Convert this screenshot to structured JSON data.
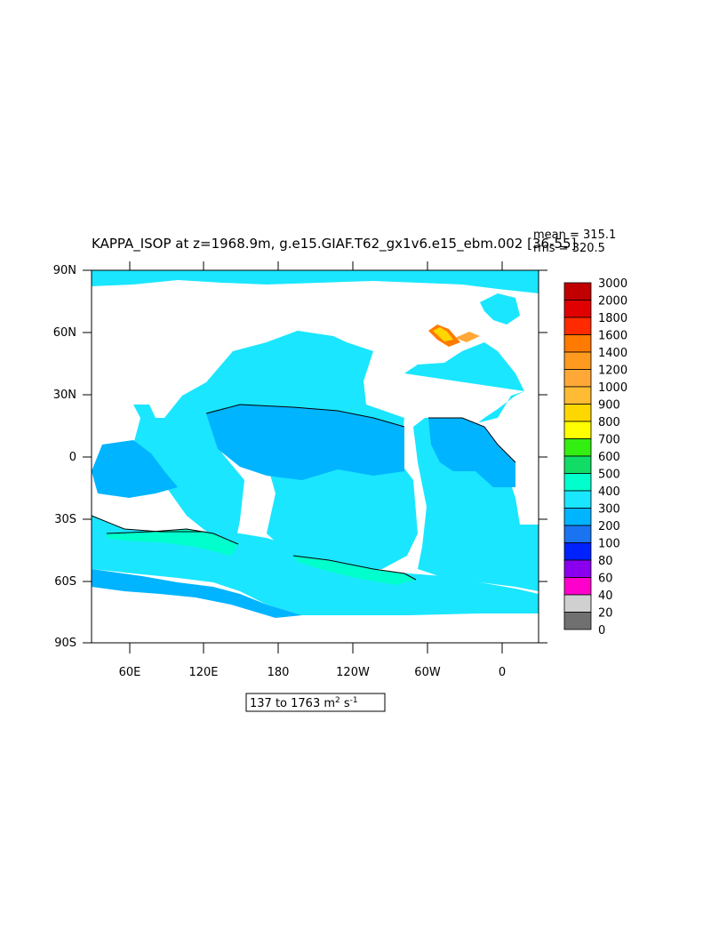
{
  "plot": {
    "title": "KAPPA_ISOP at z=1968.9m, g.e15.GIAF.T62_gx1v6.e15_ebm.002 [36-55]",
    "stats_mean": "mean = 315.1",
    "stats_rms": "rms = 320.5",
    "range_label": "137 to 1763 m",
    "range_unit_sup1": "2",
    "range_unit_mid": " s",
    "range_unit_sup2": "-1"
  },
  "axes": {
    "y_ticks": [
      "90N",
      "60N",
      "30N",
      "0",
      "30S",
      "60S",
      "90S"
    ],
    "x_ticks": [
      "60E",
      "120E",
      "180",
      "120W",
      "60W",
      "0"
    ]
  },
  "legend": {
    "levels": [
      {
        "label": "3000",
        "color": "#c00000"
      },
      {
        "label": "2000",
        "color": "#e00000"
      },
      {
        "label": "1800",
        "color": "#ff2a00"
      },
      {
        "label": "1600",
        "color": "#ff7a00"
      },
      {
        "label": "1400",
        "color": "#ff9a20"
      },
      {
        "label": "1200",
        "color": "#ffa838"
      },
      {
        "label": "1000",
        "color": "#ffbb33"
      },
      {
        "label": "900",
        "color": "#ffd700"
      },
      {
        "label": "800",
        "color": "#ffff00"
      },
      {
        "label": "700",
        "color": "#33ee11"
      },
      {
        "label": "600",
        "color": "#11dd66"
      },
      {
        "label": "500",
        "color": "#00ffcc"
      },
      {
        "label": "400",
        "color": "#1ae6ff"
      },
      {
        "label": "300",
        "color": "#00b4ff"
      },
      {
        "label": "200",
        "color": "#1a73f0"
      },
      {
        "label": "100",
        "color": "#0022ff"
      },
      {
        "label": "80",
        "color": "#8a00ee"
      },
      {
        "label": "60",
        "color": "#ff00cc"
      },
      {
        "label": "40",
        "color": "#d0d0d0"
      },
      {
        "label": "20",
        "color": "#707070"
      },
      {
        "label": "0",
        "color": ""
      }
    ]
  }
}
